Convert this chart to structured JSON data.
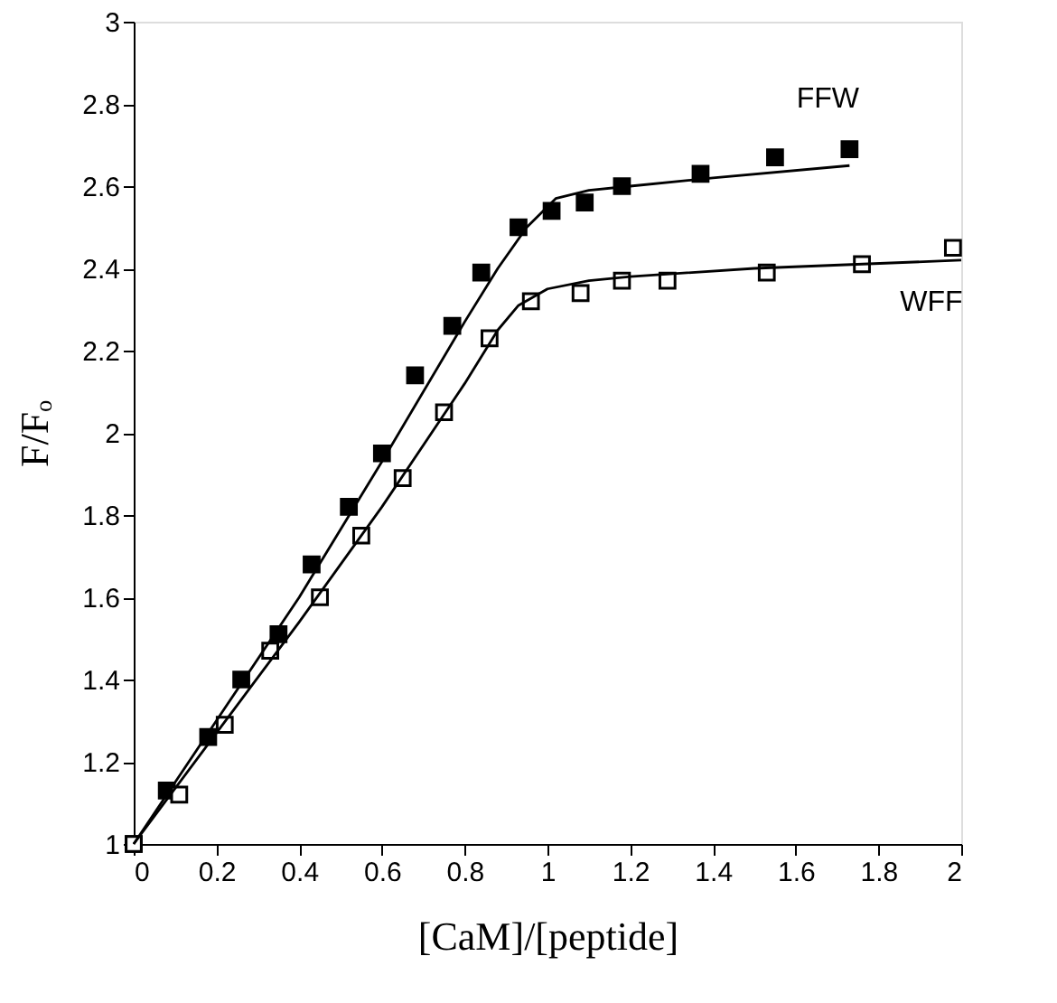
{
  "chart_data": {
    "type": "scatter",
    "xlabel": "[CaM]/[peptide]",
    "ylabel": "F/Fₒ",
    "xlim": [
      0,
      2
    ],
    "ylim": [
      1,
      3
    ],
    "xticks": [
      0,
      0.2,
      0.4,
      0.6,
      0.8,
      1,
      1.2,
      1.4,
      1.6,
      1.8,
      2
    ],
    "yticks": [
      1,
      1.2,
      1.4,
      1.6,
      1.8,
      2,
      2.2,
      2.4,
      2.6,
      2.8,
      3
    ],
    "grid": false,
    "legend": false,
    "series": [
      {
        "name": "FFW",
        "marker": "square",
        "color": "#000000",
        "x": [
          0,
          0.08,
          0.18,
          0.26,
          0.35,
          0.43,
          0.52,
          0.6,
          0.68,
          0.77,
          0.84,
          0.93,
          1.01,
          1.09,
          1.18,
          1.37,
          1.55,
          1.73
        ],
        "values": [
          1,
          1.13,
          1.26,
          1.4,
          1.51,
          1.68,
          1.82,
          1.95,
          2.14,
          2.26,
          2.39,
          2.5,
          2.54,
          2.56,
          2.6,
          2.63,
          2.67,
          2.69
        ]
      },
      {
        "name": "WFF",
        "marker": "square",
        "color": "#ffffff",
        "x": [
          0,
          0.11,
          0.22,
          0.33,
          0.45,
          0.55,
          0.65,
          0.75,
          0.86,
          0.96,
          1.08,
          1.18,
          1.29,
          1.53,
          1.76,
          1.98
        ],
        "values": [
          1,
          1.12,
          1.29,
          1.47,
          1.6,
          1.75,
          1.89,
          2.05,
          2.23,
          2.32,
          2.34,
          2.37,
          2.37,
          2.39,
          2.41,
          2.45
        ]
      },
      {
        "type": "line",
        "line_style": "solid",
        "color": "#000000",
        "x": [
          0,
          0.2,
          0.4,
          0.6,
          0.8,
          0.88,
          0.95,
          1.02,
          1.1,
          1.2,
          1.4,
          1.73
        ],
        "values": [
          1,
          1.3,
          1.6,
          1.93,
          2.27,
          2.4,
          2.5,
          2.57,
          2.59,
          2.6,
          2.62,
          2.65
        ]
      },
      {
        "type": "line",
        "line_style": "solid",
        "color": "#000000",
        "x": [
          0,
          0.2,
          0.4,
          0.6,
          0.8,
          0.88,
          0.93,
          1.0,
          1.1,
          1.2,
          1.5,
          2
        ],
        "values": [
          1,
          1.27,
          1.54,
          1.82,
          2.12,
          2.25,
          2.31,
          2.35,
          2.37,
          2.38,
          2.4,
          2.42
        ]
      }
    ]
  }
}
